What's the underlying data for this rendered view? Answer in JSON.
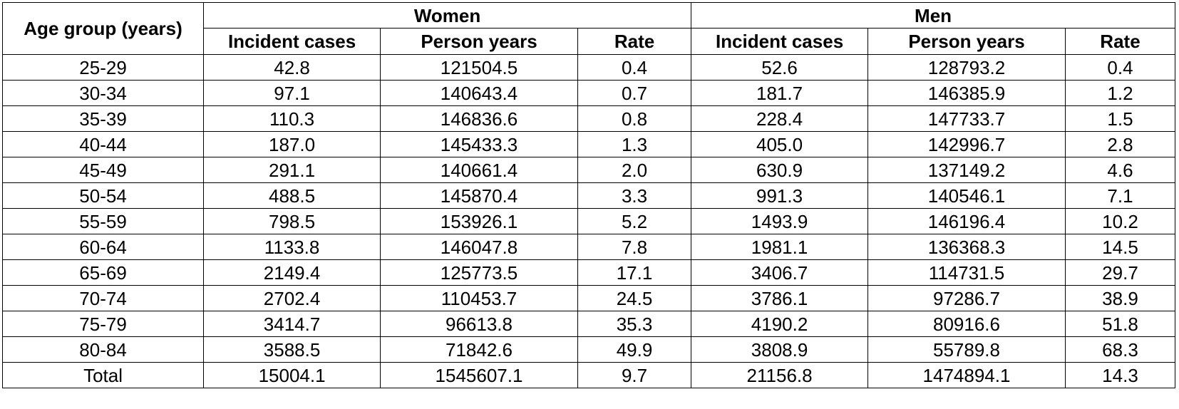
{
  "table": {
    "row_header_label": "Age group (years)",
    "groups": [
      {
        "label": "Women",
        "columns": [
          "Incident cases",
          "Person years",
          "Rate"
        ]
      },
      {
        "label": "Men",
        "columns": [
          "Incident cases",
          "Person years",
          "Rate"
        ]
      }
    ],
    "rows": [
      {
        "age": "25-29",
        "w_cases": "42.8",
        "w_py": "121504.5",
        "w_rate": "0.4",
        "m_cases": "52.6",
        "m_py": "128793.2",
        "m_rate": "0.4"
      },
      {
        "age": "30-34",
        "w_cases": "97.1",
        "w_py": "140643.4",
        "w_rate": "0.7",
        "m_cases": "181.7",
        "m_py": "146385.9",
        "m_rate": "1.2"
      },
      {
        "age": "35-39",
        "w_cases": "110.3",
        "w_py": "146836.6",
        "w_rate": "0.8",
        "m_cases": "228.4",
        "m_py": "147733.7",
        "m_rate": "1.5"
      },
      {
        "age": "40-44",
        "w_cases": "187.0",
        "w_py": "145433.3",
        "w_rate": "1.3",
        "m_cases": "405.0",
        "m_py": "142996.7",
        "m_rate": "2.8"
      },
      {
        "age": "45-49",
        "w_cases": "291.1",
        "w_py": "140661.4",
        "w_rate": "2.0",
        "m_cases": "630.9",
        "m_py": "137149.2",
        "m_rate": "4.6"
      },
      {
        "age": "50-54",
        "w_cases": "488.5",
        "w_py": "145870.4",
        "w_rate": "3.3",
        "m_cases": "991.3",
        "m_py": "140546.1",
        "m_rate": "7.1"
      },
      {
        "age": "55-59",
        "w_cases": "798.5",
        "w_py": "153926.1",
        "w_rate": "5.2",
        "m_cases": "1493.9",
        "m_py": "146196.4",
        "m_rate": "10.2"
      },
      {
        "age": "60-64",
        "w_cases": "1133.8",
        "w_py": "146047.8",
        "w_rate": "7.8",
        "m_cases": "1981.1",
        "m_py": "136368.3",
        "m_rate": "14.5"
      },
      {
        "age": "65-69",
        "w_cases": "2149.4",
        "w_py": "125773.5",
        "w_rate": "17.1",
        "m_cases": "3406.7",
        "m_py": "114731.5",
        "m_rate": "29.7"
      },
      {
        "age": "70-74",
        "w_cases": "2702.4",
        "w_py": "110453.7",
        "w_rate": "24.5",
        "m_cases": "3786.1",
        "m_py": "97286.7",
        "m_rate": "38.9"
      },
      {
        "age": "75-79",
        "w_cases": "3414.7",
        "w_py": "96613.8",
        "w_rate": "35.3",
        "m_cases": "4190.2",
        "m_py": "80916.6",
        "m_rate": "51.8"
      },
      {
        "age": "80-84",
        "w_cases": "3588.5",
        "w_py": "71842.6",
        "w_rate": "49.9",
        "m_cases": "3808.9",
        "m_py": "55789.8",
        "m_rate": "68.3"
      },
      {
        "age": "Total",
        "w_cases": "15004.1",
        "w_py": "1545607.1",
        "w_rate": "9.7",
        "m_cases": "21156.8",
        "m_py": "1474894.1",
        "m_rate": "14.3"
      }
    ]
  }
}
